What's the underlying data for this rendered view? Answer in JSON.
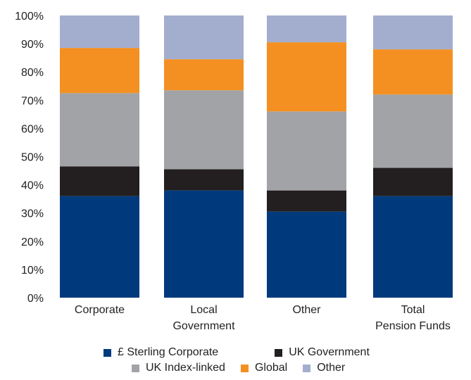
{
  "chart_data": {
    "type": "bar",
    "stacked": true,
    "categories": [
      [
        "Corporate"
      ],
      [
        "Local",
        "Government"
      ],
      [
        "Other"
      ],
      [
        "Total",
        "Pension Funds"
      ]
    ],
    "y_ticks": [
      "0%",
      "10%",
      "20%",
      "30%",
      "40%",
      "50%",
      "60%",
      "70%",
      "80%",
      "90%",
      "100%"
    ],
    "ylim": [
      0,
      100
    ],
    "series": [
      {
        "name": "£ Sterling Corporate",
        "color": "#003a7d",
        "values": [
          36,
          38,
          30.5,
          36
        ]
      },
      {
        "name": "UK Government",
        "color": "#231f20",
        "values": [
          10.5,
          7.5,
          7.5,
          10
        ]
      },
      {
        "name": "UK Index-linked",
        "color": "#a2a3a6",
        "values": [
          26,
          28,
          28,
          26
        ]
      },
      {
        "name": "Global",
        "color": "#f39021",
        "values": [
          16,
          11,
          24.5,
          16
        ]
      },
      {
        "name": "Other",
        "color": "#a3aecf",
        "values": [
          11.5,
          15.5,
          9.5,
          12
        ]
      }
    ],
    "legend_rows": [
      [
        0,
        1
      ],
      [
        2,
        3,
        4
      ]
    ],
    "legend_position": "bottom"
  }
}
